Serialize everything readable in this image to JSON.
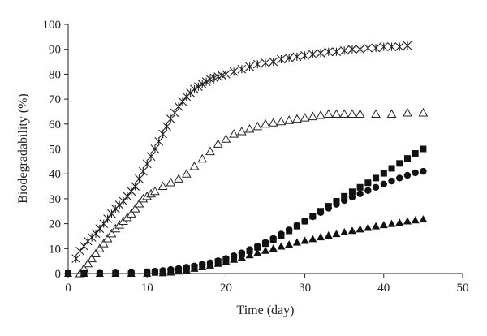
{
  "chart_data": {
    "type": "scatter",
    "title": "",
    "xlabel": "Time (day)",
    "ylabel": "Biodegradability (%)",
    "xlim": [
      0,
      50
    ],
    "ylim": [
      0,
      100
    ],
    "xticks": [
      0,
      10,
      20,
      30,
      40,
      50
    ],
    "yticks": [
      0,
      10,
      20,
      30,
      40,
      50,
      60,
      70,
      80,
      90,
      100
    ],
    "grid": false,
    "legend": "none",
    "series": [
      {
        "marker": "x-star",
        "color": "#222222",
        "points": [
          [
            1,
            6
          ],
          [
            1.5,
            9
          ],
          [
            2,
            11
          ],
          [
            2.5,
            13
          ],
          [
            3,
            14.5
          ],
          [
            3.5,
            16
          ],
          [
            4,
            18
          ],
          [
            4.5,
            20
          ],
          [
            5,
            22
          ],
          [
            5.5,
            24
          ],
          [
            6,
            26
          ],
          [
            6.5,
            27.5
          ],
          [
            7,
            29
          ],
          [
            7.5,
            31
          ],
          [
            8,
            33
          ],
          [
            8.5,
            35
          ],
          [
            9,
            38
          ],
          [
            9.5,
            41
          ],
          [
            10,
            44
          ],
          [
            10.5,
            47
          ],
          [
            11,
            50
          ],
          [
            11.5,
            53
          ],
          [
            12,
            56
          ],
          [
            12.5,
            59
          ],
          [
            13,
            62
          ],
          [
            13.5,
            64.5
          ],
          [
            14,
            67
          ],
          [
            14.5,
            69
          ],
          [
            15,
            71
          ],
          [
            15.5,
            72.5
          ],
          [
            16,
            74
          ],
          [
            16.5,
            75
          ],
          [
            17,
            76
          ],
          [
            17.5,
            77
          ],
          [
            18,
            78
          ],
          [
            18.5,
            78.5
          ],
          [
            19,
            79
          ],
          [
            19.5,
            79.5
          ],
          [
            20,
            80
          ],
          [
            21,
            81
          ],
          [
            22,
            82
          ],
          [
            23,
            83
          ],
          [
            24,
            84
          ],
          [
            25,
            84.5
          ],
          [
            26,
            85
          ],
          [
            27,
            86
          ],
          [
            28,
            86.5
          ],
          [
            29,
            87
          ],
          [
            30,
            87.5
          ],
          [
            31,
            88
          ],
          [
            32,
            88.5
          ],
          [
            33,
            89
          ],
          [
            34,
            89
          ],
          [
            35,
            89.5
          ],
          [
            36,
            90
          ],
          [
            37,
            90
          ],
          [
            38,
            90.5
          ],
          [
            39,
            90.5
          ],
          [
            40,
            91
          ],
          [
            41,
            91
          ],
          [
            42,
            91
          ],
          [
            43,
            91.5
          ]
        ]
      },
      {
        "marker": "triangle-open",
        "color": "#222222",
        "points": [
          [
            1.5,
            0
          ],
          [
            2,
            2
          ],
          [
            2.5,
            4
          ],
          [
            3,
            6
          ],
          [
            3.5,
            8
          ],
          [
            4,
            10
          ],
          [
            4.5,
            12
          ],
          [
            5,
            14
          ],
          [
            5.5,
            16
          ],
          [
            6,
            18
          ],
          [
            6.5,
            19.5
          ],
          [
            7,
            21
          ],
          [
            7.5,
            22.5
          ],
          [
            8,
            24
          ],
          [
            8.5,
            26
          ],
          [
            9,
            28
          ],
          [
            9.5,
            30
          ],
          [
            10,
            31
          ],
          [
            10.5,
            32
          ],
          [
            11,
            33
          ],
          [
            12,
            35
          ],
          [
            13,
            36.5
          ],
          [
            14,
            38
          ],
          [
            15,
            40
          ],
          [
            16,
            43
          ],
          [
            17,
            46
          ],
          [
            18,
            49
          ],
          [
            19,
            52
          ],
          [
            20,
            54
          ],
          [
            21,
            56
          ],
          [
            22,
            57
          ],
          [
            23,
            58
          ],
          [
            24,
            59
          ],
          [
            25,
            60
          ],
          [
            26,
            60.5
          ],
          [
            27,
            61
          ],
          [
            28,
            61.5
          ],
          [
            29,
            62
          ],
          [
            30,
            62.5
          ],
          [
            31,
            63
          ],
          [
            32,
            63.5
          ],
          [
            33,
            64
          ],
          [
            34,
            64
          ],
          [
            35,
            64
          ],
          [
            36,
            64
          ],
          [
            37,
            64
          ],
          [
            39,
            64
          ],
          [
            41,
            64
          ],
          [
            43,
            64.5
          ],
          [
            45,
            64.5
          ]
        ]
      },
      {
        "marker": "square-filled",
        "color": "#111111",
        "points": [
          [
            0,
            0
          ],
          [
            2,
            0
          ],
          [
            4,
            0
          ],
          [
            6,
            0
          ],
          [
            8,
            0
          ],
          [
            10,
            0.2
          ],
          [
            11,
            0.4
          ],
          [
            12,
            0.7
          ],
          [
            13,
            1
          ],
          [
            14,
            1.5
          ],
          [
            15,
            2
          ],
          [
            16,
            2.6
          ],
          [
            17,
            3.3
          ],
          [
            18,
            4
          ],
          [
            19,
            4.8
          ],
          [
            20,
            5.6
          ],
          [
            21,
            6.6
          ],
          [
            22,
            7.8
          ],
          [
            23,
            9.1
          ],
          [
            24,
            10.5
          ],
          [
            25,
            12
          ],
          [
            26,
            13.6
          ],
          [
            27,
            15.3
          ],
          [
            28,
            17.1
          ],
          [
            29,
            19
          ],
          [
            30,
            21
          ],
          [
            31,
            23
          ],
          [
            32,
            25
          ],
          [
            33,
            27
          ],
          [
            34,
            29
          ],
          [
            35,
            31
          ],
          [
            36,
            32.8
          ],
          [
            37,
            34.6
          ],
          [
            38,
            36.4
          ],
          [
            39,
            38.3
          ],
          [
            40,
            40.2
          ],
          [
            41,
            42.2
          ],
          [
            42,
            44.2
          ],
          [
            43,
            46.2
          ],
          [
            44,
            48.2
          ],
          [
            45,
            50
          ]
        ]
      },
      {
        "marker": "circle-filled",
        "color": "#111111",
        "points": [
          [
            0,
            0
          ],
          [
            2,
            0
          ],
          [
            4,
            0.1
          ],
          [
            6,
            0.2
          ],
          [
            8,
            0.4
          ],
          [
            10,
            0.7
          ],
          [
            11,
            0.9
          ],
          [
            12,
            1.2
          ],
          [
            13,
            1.6
          ],
          [
            14,
            2
          ],
          [
            15,
            2.5
          ],
          [
            16,
            3
          ],
          [
            17,
            3.6
          ],
          [
            18,
            4.3
          ],
          [
            19,
            5.1
          ],
          [
            20,
            6
          ],
          [
            21,
            7.1
          ],
          [
            22,
            8.3
          ],
          [
            23,
            9.6
          ],
          [
            24,
            11
          ],
          [
            25,
            12.5
          ],
          [
            26,
            14.1
          ],
          [
            27,
            15.8
          ],
          [
            28,
            17.5
          ],
          [
            29,
            19.3
          ],
          [
            30,
            21
          ],
          [
            31,
            22.8
          ],
          [
            32,
            24.5
          ],
          [
            33,
            26.2
          ],
          [
            34,
            27.8
          ],
          [
            35,
            29.3
          ],
          [
            36,
            30.7
          ],
          [
            37,
            32
          ],
          [
            38,
            33.3
          ],
          [
            39,
            34.6
          ],
          [
            40,
            35.9
          ],
          [
            41,
            37.1
          ],
          [
            42,
            38.3
          ],
          [
            43,
            39.4
          ],
          [
            44,
            40.4
          ],
          [
            45,
            41
          ]
        ]
      },
      {
        "marker": "triangle-filled",
        "color": "#111111",
        "points": [
          [
            0,
            0
          ],
          [
            2,
            0
          ],
          [
            4,
            0
          ],
          [
            6,
            0
          ],
          [
            8,
            0
          ],
          [
            10,
            0
          ],
          [
            12,
            0.2
          ],
          [
            13,
            0.5
          ],
          [
            14,
            0.9
          ],
          [
            15,
            1.4
          ],
          [
            16,
            2
          ],
          [
            17,
            2.6
          ],
          [
            18,
            3.3
          ],
          [
            19,
            4
          ],
          [
            20,
            4.8
          ],
          [
            21,
            5.6
          ],
          [
            22,
            6.5
          ],
          [
            23,
            7.4
          ],
          [
            24,
            8.3
          ],
          [
            25,
            9.2
          ],
          [
            26,
            10.1
          ],
          [
            27,
            10.9
          ],
          [
            28,
            11.7
          ],
          [
            29,
            12.5
          ],
          [
            30,
            13.2
          ],
          [
            31,
            13.9
          ],
          [
            32,
            14.6
          ],
          [
            33,
            15.3
          ],
          [
            34,
            15.9
          ],
          [
            35,
            16.6
          ],
          [
            36,
            17.2
          ],
          [
            37,
            17.8
          ],
          [
            38,
            18.4
          ],
          [
            39,
            19
          ],
          [
            40,
            19.5
          ],
          [
            41,
            20
          ],
          [
            42,
            20.5
          ],
          [
            43,
            21
          ],
          [
            44,
            21.4
          ],
          [
            45,
            21.8
          ]
        ]
      }
    ]
  }
}
